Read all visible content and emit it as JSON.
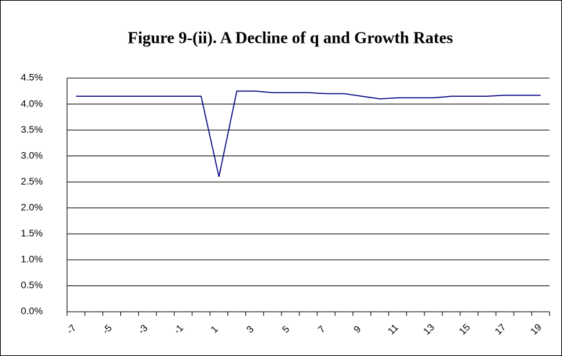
{
  "chart_data": {
    "type": "line",
    "title": "Figure 9-(ii). A Decline of q and Growth Rates",
    "categories": [
      "-7",
      null,
      "-5",
      null,
      "-3",
      null,
      "-1",
      null,
      "1",
      null,
      "3",
      null,
      "5",
      null,
      "7",
      null,
      "9",
      null,
      "11",
      null,
      "13",
      null,
      "15",
      null,
      "17",
      null,
      "19"
    ],
    "series": [
      {
        "color": "#000080",
        "values": [
          4.15,
          4.15,
          4.15,
          4.15,
          4.15,
          4.15,
          4.15,
          4.15,
          2.6,
          4.25,
          4.25,
          4.22,
          4.22,
          4.22,
          4.2,
          4.2,
          4.15,
          4.1,
          4.12,
          4.12,
          4.12,
          4.15,
          4.15,
          4.15,
          4.17,
          4.17,
          4.17
        ]
      }
    ],
    "ylim": [
      0,
      4.5
    ],
    "yticks": [
      {
        "value": 0,
        "label": "0.0%"
      },
      {
        "value": 0.5,
        "label": "0.5%"
      },
      {
        "value": 1,
        "label": "1.0%"
      },
      {
        "value": 1.5,
        "label": "1.5%"
      },
      {
        "value": 2,
        "label": "2.0%"
      },
      {
        "value": 2.5,
        "label": "2.5%"
      },
      {
        "value": 3,
        "label": "3.0%"
      },
      {
        "value": 3.5,
        "label": "3.5%"
      },
      {
        "value": 4,
        "label": "4.0%"
      },
      {
        "value": 4.5,
        "label": "4.5%"
      }
    ],
    "grid": true
  }
}
